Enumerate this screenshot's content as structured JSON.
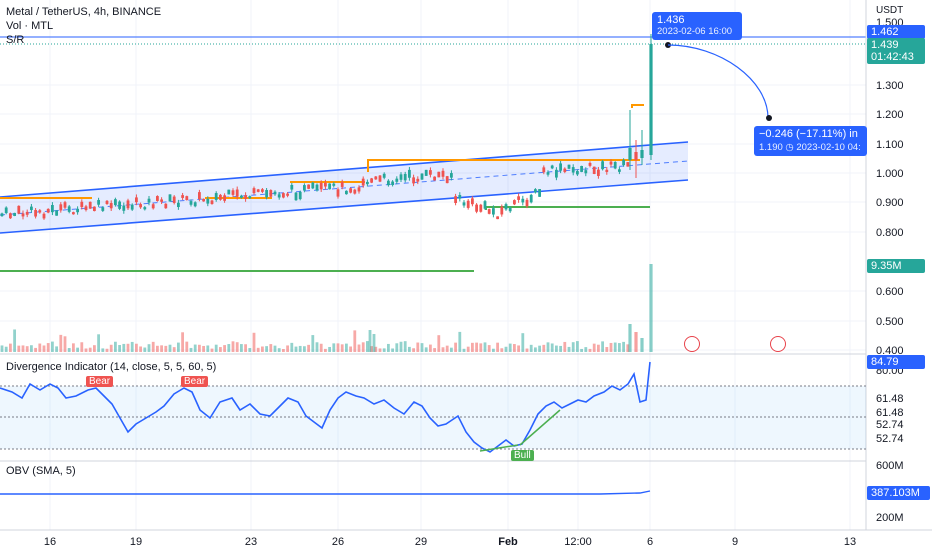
{
  "header": {
    "symbol_line": "Metal / TetherUS, 4h, BINANCE",
    "vol_label": "Vol · MTL",
    "sr_label": "S/R"
  },
  "price_axis": {
    "currency": "USDT",
    "ticks": [
      "1.300",
      "1.200",
      "1.100",
      "1.000",
      "0.900",
      "0.800",
      "0.600",
      "0.500",
      "0.400"
    ],
    "partial_top_tick": "1.500",
    "current_line_price": "1.462",
    "last_price": "1.439",
    "countdown": "01:42:43",
    "volume_value": "9.35M"
  },
  "measure_top": {
    "price": "1.436",
    "date": "2023-02-06 16:00"
  },
  "measure_bottom": {
    "change": "−0.246 (−17.11%) in",
    "price": "1.190",
    "date": "2023-02-10  04:"
  },
  "divergence": {
    "title": "Divergence Indicator (14, close, 5, 5, 60, 5)",
    "value": "84.79",
    "ticks": [
      "80.00",
      "61.48",
      "61.48",
      "52.74",
      "52.74"
    ],
    "bear_label": "Bear",
    "bull_label": "Bull"
  },
  "obv": {
    "title": "OBV (SMA, 5)",
    "value": "387.103M",
    "ticks": [
      "600M",
      "200M"
    ]
  },
  "time_axis": [
    "16",
    "19",
    "23",
    "26",
    "29",
    "Feb",
    "12:00",
    "6",
    "9",
    "13"
  ],
  "colors": {
    "up": "#26a69a",
    "down": "#ef5350",
    "channel": "#2962ff",
    "sr_orange": "#ff9800",
    "sr_green": "#4caf50",
    "price_line": "#2962ff",
    "last_price_bg": "#26a69a"
  }
}
